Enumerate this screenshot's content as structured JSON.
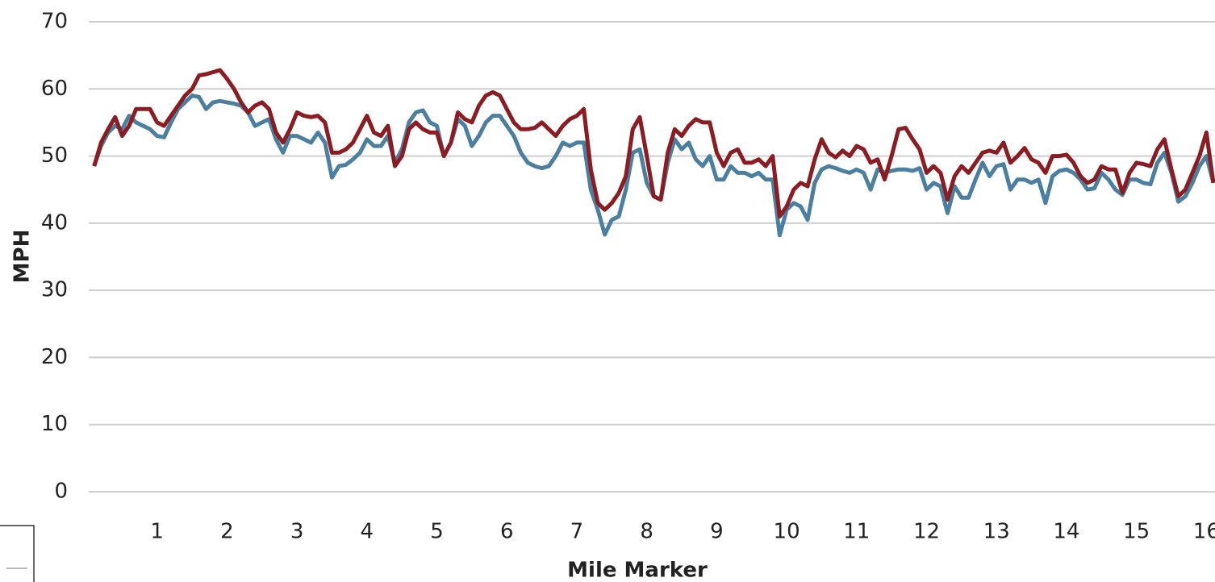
{
  "chart_data": {
    "type": "line",
    "x_label": "Mile Marker",
    "y_label": "MPH",
    "x": [
      0.1,
      0.2,
      0.3,
      0.4,
      0.5,
      0.6,
      0.7,
      0.8,
      0.9,
      1.0,
      1.1,
      1.2,
      1.3,
      1.4,
      1.5,
      1.6,
      1.7,
      1.8,
      1.9,
      2.0,
      2.1,
      2.2,
      2.3,
      2.4,
      2.5,
      2.6,
      2.7,
      2.8,
      2.9,
      3.0,
      3.1,
      3.2,
      3.3,
      3.4,
      3.5,
      3.6,
      3.7,
      3.8,
      3.9,
      4.0,
      4.1,
      4.2,
      4.3,
      4.4,
      4.5,
      4.6,
      4.7,
      4.8,
      4.9,
      5.0,
      5.1,
      5.2,
      5.3,
      5.4,
      5.5,
      5.6,
      5.7,
      5.8,
      5.9,
      6.0,
      6.1,
      6.2,
      6.3,
      6.4,
      6.5,
      6.6,
      6.7,
      6.8,
      6.9,
      7.0,
      7.1,
      7.2,
      7.3,
      7.4,
      7.5,
      7.6,
      7.7,
      7.8,
      7.9,
      8.0,
      8.1,
      8.2,
      8.3,
      8.4,
      8.5,
      8.6,
      8.7,
      8.8,
      8.9,
      9.0,
      9.1,
      9.2,
      9.3,
      9.4,
      9.5,
      9.6,
      9.7,
      9.8,
      9.9,
      10.0,
      10.1,
      10.2,
      10.3,
      10.4,
      10.5,
      10.6,
      10.7,
      10.8,
      10.9,
      11.0,
      11.1,
      11.2,
      11.3,
      11.4,
      11.5,
      11.6,
      11.7,
      11.8,
      11.9,
      12.0,
      12.1,
      12.2,
      12.3,
      12.4,
      12.5,
      12.6,
      12.7,
      12.8,
      12.9,
      13.0,
      13.1,
      13.2,
      13.3,
      13.4,
      13.5,
      13.6,
      13.7,
      13.8,
      13.9,
      14.0,
      14.1,
      14.2,
      14.3,
      14.4,
      14.5,
      14.6,
      14.7,
      14.8,
      14.9,
      15.0,
      15.1,
      15.2,
      15.3,
      15.4,
      15.5,
      15.6,
      15.7,
      15.8,
      15.9,
      16.0,
      16.1
    ],
    "series": [
      {
        "color": "#4a7fa0",
        "values": [
          48.5,
          51.5,
          53.5,
          54.5,
          54,
          56,
          55,
          54.5,
          54,
          53,
          52.8,
          55,
          57,
          58,
          59,
          58.8,
          57,
          58,
          58.2,
          58,
          57.8,
          57.5,
          56.5,
          54.5,
          55,
          55.5,
          52.5,
          50.5,
          53,
          53,
          52.5,
          52,
          53.5,
          52,
          46.8,
          48.5,
          48.7,
          49.5,
          50.5,
          52.5,
          51.5,
          51.5,
          53,
          49,
          51,
          55,
          56.5,
          56.8,
          55,
          54.5,
          50,
          52,
          55.5,
          54.5,
          51.5,
          53,
          55,
          56,
          56,
          54.5,
          53,
          50.5,
          49,
          48.5,
          48.2,
          48.5,
          50,
          52,
          51.5,
          52,
          52,
          45,
          42,
          38.3,
          40.5,
          41,
          45,
          50.5,
          51,
          46,
          44,
          43.5,
          49,
          52.5,
          51,
          52,
          49.5,
          48.5,
          50,
          46.5,
          46.5,
          48.5,
          47.5,
          47.5,
          47,
          47.5,
          46.5,
          46.5,
          38.2,
          42,
          43,
          42.5,
          40.5,
          46,
          48,
          48.5,
          48.2,
          47.8,
          47.5,
          48,
          47.5,
          45,
          48,
          47.5,
          47.8,
          48,
          48,
          47.8,
          48.2,
          45,
          46,
          45.5,
          41.5,
          45.5,
          43.8,
          43.8,
          46.5,
          49,
          47,
          48.5,
          48.8,
          45,
          46.5,
          46.5,
          46,
          46.5,
          43,
          47,
          47.8,
          48,
          47.5,
          46.5,
          45,
          45.2,
          47.5,
          46.5,
          45,
          44.2,
          46.5,
          46.5,
          46,
          45.8,
          49,
          50.5,
          47.5,
          43.2,
          44,
          46,
          48.5,
          50,
          46
        ]
      },
      {
        "color": "#8a1c22",
        "values": [
          48.5,
          52,
          54,
          55.8,
          53,
          54.5,
          57,
          57,
          57,
          55,
          54.5,
          56,
          57.5,
          59,
          60,
          62,
          62.2,
          62.5,
          62.8,
          61.5,
          60,
          58,
          56.5,
          57.5,
          58,
          57,
          53.5,
          52,
          54,
          56.5,
          56,
          55.8,
          56,
          55,
          50.5,
          50.5,
          51,
          52,
          54,
          56,
          53.5,
          53,
          54.5,
          48.5,
          50,
          54,
          55,
          54,
          53.5,
          53.5,
          50,
          52,
          56.5,
          55.5,
          55,
          57.5,
          59,
          59.5,
          59,
          57,
          55,
          54,
          54,
          54.2,
          55,
          54,
          53,
          54.5,
          55.5,
          56,
          57,
          48,
          43,
          42,
          43,
          44.5,
          47,
          54,
          55.8,
          50,
          44,
          43.5,
          50.5,
          54,
          53,
          54.5,
          55.5,
          55,
          55,
          50.5,
          48.5,
          50.5,
          51,
          49,
          49,
          49.5,
          48.5,
          50,
          41,
          42.5,
          45,
          46,
          45.5,
          49.5,
          52.5,
          50.5,
          49.8,
          50.8,
          50,
          51.5,
          51,
          49,
          49.5,
          46.5,
          50,
          54,
          54.2,
          52.5,
          51,
          47.5,
          48.5,
          47.5,
          43.5,
          47,
          48.5,
          47.5,
          49,
          50.5,
          50.8,
          50.5,
          52,
          49,
          50,
          51.2,
          49.5,
          49,
          47.5,
          50,
          50,
          50.2,
          49,
          47,
          46,
          46.5,
          48.5,
          48,
          48,
          44.5,
          47.5,
          49,
          48.8,
          48.5,
          51,
          52.5,
          48,
          44,
          45,
          47.5,
          50,
          53.5,
          46
        ]
      }
    ],
    "xlim": [
      0,
      16.1
    ],
    "xticks": [
      1,
      2,
      3,
      4,
      5,
      6,
      7,
      8,
      9,
      10,
      11,
      12,
      13,
      14,
      15,
      16
    ],
    "ylim": [
      0,
      70
    ],
    "yticks": [
      0,
      10,
      20,
      30,
      40,
      50,
      60,
      70
    ],
    "grid": true
  }
}
